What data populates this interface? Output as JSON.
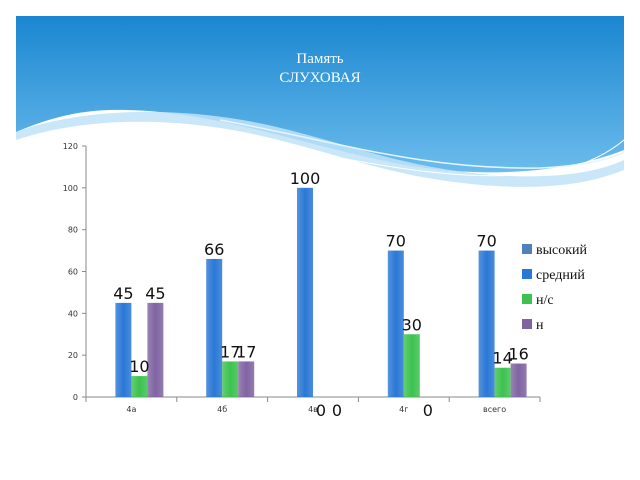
{
  "slide": {
    "title_line1": "Память",
    "title_line2": "СЛУХОВАЯ",
    "colors": {
      "header_dark": "#1a86d0",
      "header_light": "#7fc6f2",
      "wave": "#bfe3f8"
    }
  },
  "chart_data": {
    "type": "bar",
    "title": "",
    "xlabel": "",
    "ylabel": "",
    "categories": [
      "4а",
      "4б",
      "4в",
      "4г",
      "всего"
    ],
    "ylim": [
      0,
      120
    ],
    "yticks": [
      0,
      20,
      40,
      60,
      80,
      100,
      120
    ],
    "grid": false,
    "legend_position": "right",
    "series": [
      {
        "name": "высокий",
        "values": [
          0,
          0,
          0,
          0,
          0
        ],
        "color": "#4f81bd"
      },
      {
        "name": "средний",
        "values": [
          45,
          66,
          100,
          70,
          70
        ],
        "color": "#2a78d6"
      },
      {
        "name": "н/с",
        "values": [
          10,
          17,
          0,
          30,
          14
        ],
        "color": "#3cc24f"
      },
      {
        "name": "н",
        "values": [
          45,
          17,
          0,
          0,
          16
        ],
        "color": "#8064a2"
      }
    ],
    "data_labels": [
      {
        "category": "4а",
        "series": "средний",
        "text": "45"
      },
      {
        "category": "4а",
        "series": "н/с",
        "text": "10"
      },
      {
        "category": "4а",
        "series": "н",
        "text": "45"
      },
      {
        "category": "4б",
        "series": "средний",
        "text": "66"
      },
      {
        "category": "4б",
        "series": "н/с",
        "text": "17"
      },
      {
        "category": "4б",
        "series": "н",
        "text": "17"
      },
      {
        "category": "4в",
        "series": "средний",
        "text": "100"
      },
      {
        "category": "4в",
        "series": "н/с",
        "text": "0"
      },
      {
        "category": "4в",
        "series": "н",
        "text": "0"
      },
      {
        "category": "4г",
        "series": "средний",
        "text": "70"
      },
      {
        "category": "4г",
        "series": "н/с",
        "text": "30"
      },
      {
        "category": "4г",
        "series": "н",
        "text": "0"
      },
      {
        "category": "всего",
        "series": "средний",
        "text": "70"
      },
      {
        "category": "всего",
        "series": "н/с",
        "text": "14"
      },
      {
        "category": "всего",
        "series": "н",
        "text": "16"
      }
    ]
  }
}
